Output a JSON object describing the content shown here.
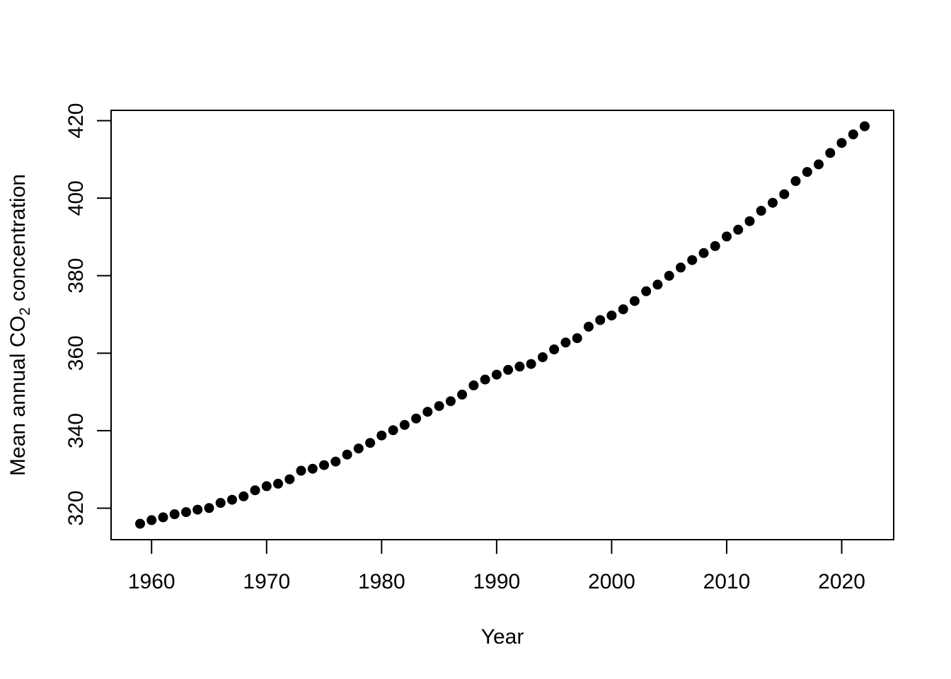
{
  "chart_data": {
    "type": "scatter",
    "title": "",
    "xlabel": "Year",
    "ylabel": "Mean annual CO2 concentration",
    "ylabel_parts": {
      "prefix": "Mean annual CO",
      "subscript": "2",
      "suffix": " concentration"
    },
    "x": [
      1959,
      1960,
      1961,
      1962,
      1963,
      1964,
      1965,
      1966,
      1967,
      1968,
      1969,
      1970,
      1971,
      1972,
      1973,
      1974,
      1975,
      1976,
      1977,
      1978,
      1979,
      1980,
      1981,
      1982,
      1983,
      1984,
      1985,
      1986,
      1987,
      1988,
      1989,
      1990,
      1991,
      1992,
      1993,
      1994,
      1995,
      1996,
      1997,
      1998,
      1999,
      2000,
      2001,
      2002,
      2003,
      2004,
      2005,
      2006,
      2007,
      2008,
      2009,
      2010,
      2011,
      2012,
      2013,
      2014,
      2015,
      2016,
      2017,
      2018,
      2019,
      2020,
      2021,
      2022
    ],
    "y": [
      315.98,
      316.91,
      317.64,
      318.45,
      318.99,
      319.62,
      320.04,
      321.37,
      322.18,
      323.05,
      324.62,
      325.68,
      326.32,
      327.46,
      329.68,
      330.19,
      331.12,
      332.03,
      333.84,
      335.41,
      336.84,
      338.76,
      340.12,
      341.48,
      343.15,
      344.87,
      346.35,
      347.61,
      349.31,
      351.69,
      353.2,
      354.45,
      355.7,
      356.54,
      357.21,
      358.96,
      360.97,
      362.74,
      363.88,
      366.84,
      368.54,
      369.71,
      371.32,
      373.45,
      375.98,
      377.7,
      379.98,
      382.09,
      384.02,
      385.83,
      387.64,
      390.1,
      391.85,
      394.06,
      396.74,
      398.81,
      401.01,
      404.41,
      406.76,
      408.72,
      411.66,
      414.24,
      416.45,
      418.56
    ],
    "x_ticks": [
      1960,
      1970,
      1980,
      1990,
      2000,
      2010,
      2020
    ],
    "y_ticks": [
      320,
      340,
      360,
      380,
      400,
      420
    ],
    "xlim": [
      1956.48,
      2024.52
    ],
    "ylim": [
      311.88,
      422.66
    ],
    "grid": false,
    "legend": false,
    "point_style": {
      "shape": "filled-circle",
      "color": "#000000",
      "radius_px": 7
    },
    "axis_color": "#000000",
    "background_color": "#ffffff"
  }
}
